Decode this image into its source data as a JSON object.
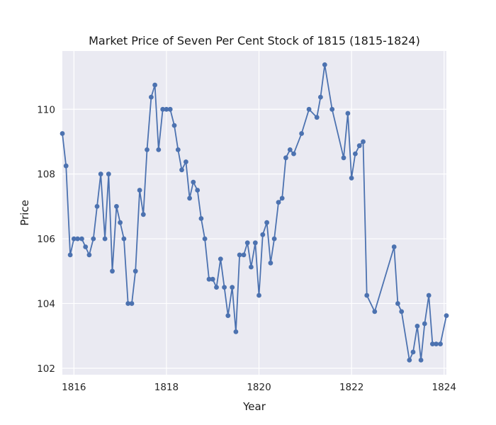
{
  "chart_data": {
    "type": "line",
    "title": "Market Price of Seven Per Cent Stock of 1815 (1815-1824)",
    "xlabel": "Year",
    "ylabel": "Price",
    "xlim": [
      1815.75,
      1824.05
    ],
    "ylim": [
      101.8,
      111.8
    ],
    "xticks": [
      1816,
      1818,
      1820,
      1822,
      1824
    ],
    "yticks": [
      102,
      104,
      106,
      108,
      110
    ],
    "grid": true,
    "background_color": "#eaeaf2",
    "line_color": "#4c72b0",
    "marker": "circle",
    "series": [
      {
        "x": [
          1815.75,
          1815.83,
          1815.92,
          1816.0,
          1816.08,
          1816.17,
          1816.25,
          1816.33,
          1816.42,
          1816.5,
          1816.58,
          1816.67,
          1816.75,
          1816.83,
          1816.92,
          1817.0,
          1817.08,
          1817.17,
          1817.25,
          1817.33,
          1817.42,
          1817.5,
          1817.58,
          1817.67,
          1817.75,
          1817.83,
          1817.92,
          1818.0,
          1818.08,
          1818.17,
          1818.25,
          1818.33,
          1818.42,
          1818.5,
          1818.58,
          1818.67,
          1818.75,
          1818.83,
          1818.92,
          1819.0,
          1819.08,
          1819.17,
          1819.25,
          1819.33,
          1819.42,
          1819.5,
          1819.58,
          1819.67,
          1819.75,
          1819.83,
          1819.92,
          1820.0,
          1820.08,
          1820.17,
          1820.25,
          1820.33,
          1820.42,
          1820.5,
          1820.58,
          1820.67,
          1820.75,
          1820.92,
          1821.08,
          1821.25,
          1821.33,
          1821.42,
          1821.58,
          1821.83,
          1821.92,
          1822.0,
          1822.08,
          1822.17,
          1822.25,
          1822.33,
          1822.5,
          1822.92,
          1823.0,
          1823.08,
          1823.25,
          1823.33,
          1823.42,
          1823.5,
          1823.58,
          1823.67,
          1823.75,
          1823.83,
          1823.92,
          1824.05
        ],
        "values": [
          109.25,
          108.25,
          105.5,
          106.0,
          106.0,
          106.0,
          105.75,
          105.5,
          106.0,
          107.0,
          108.0,
          106.0,
          108.0,
          105.0,
          107.0,
          106.5,
          106.0,
          104.0,
          104.0,
          105.0,
          107.5,
          106.75,
          108.75,
          110.375,
          110.75,
          108.75,
          110.0,
          110.0,
          110.0,
          109.5,
          108.75,
          108.125,
          108.375,
          107.25,
          107.75,
          107.5,
          106.625,
          106.0,
          104.75,
          104.75,
          104.5,
          105.375,
          104.5,
          103.625,
          104.5,
          103.125,
          105.5,
          105.5,
          105.875,
          105.125,
          105.875,
          104.25,
          106.125,
          106.5,
          105.25,
          106.0,
          107.125,
          107.25,
          108.5,
          108.75,
          108.625,
          109.25,
          110.0,
          109.75,
          110.375,
          111.375,
          110.0,
          108.5,
          109.875,
          107.875,
          108.625,
          108.875,
          109.0,
          104.25,
          103.75,
          105.75,
          104.0,
          103.75,
          102.25,
          102.5,
          103.3,
          102.25,
          103.375,
          104.25,
          102.75,
          102.75,
          102.75,
          103.625
        ]
      }
    ]
  }
}
